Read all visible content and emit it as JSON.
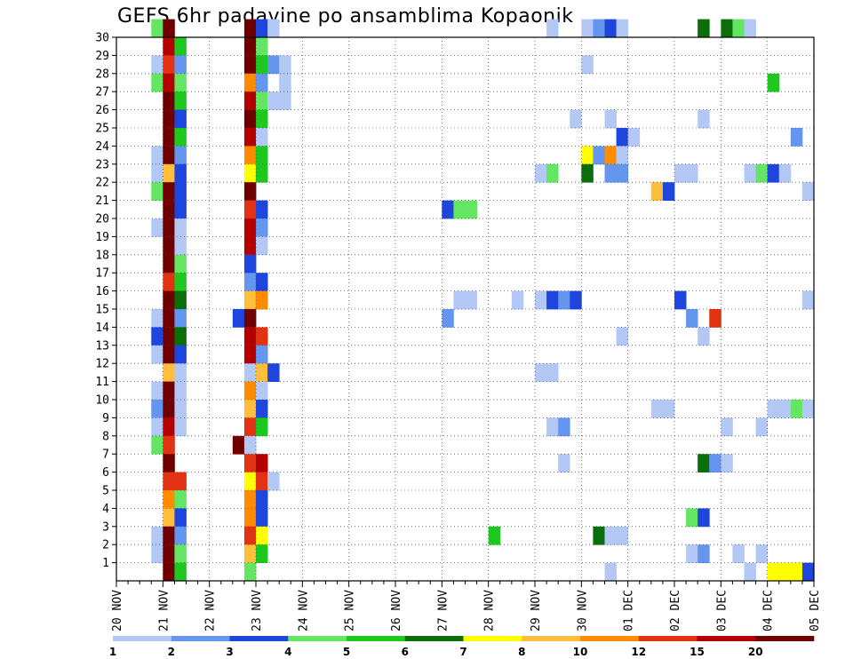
{
  "chart_data": {
    "type": "heatmap",
    "title": "GEFS 6hr padavine po ansamblima Kopaonik",
    "y_tick_labels": [
      "1",
      "2",
      "3",
      "4",
      "5",
      "6",
      "7",
      "8",
      "9",
      "10",
      "11",
      "12",
      "13",
      "14",
      "15",
      "16",
      "17",
      "18",
      "19",
      "20",
      "21",
      "22",
      "23",
      "24",
      "25",
      "26",
      "27",
      "28",
      "29",
      "30"
    ],
    "x_tick_labels": [
      "20 NOV",
      "21 NOV",
      "22 NOV",
      "23 NOV",
      "24 NOV",
      "25 NOV",
      "26 NOV",
      "27 NOV",
      "28 NOV",
      "29 NOV",
      "30 NOV",
      "01 DEC",
      "02 DEC",
      "03 DEC",
      "04 DEC",
      "05 DEC"
    ],
    "x_range_steps": [
      0,
      60
    ],
    "y_range": [
      0,
      30
    ],
    "grid": "dotted",
    "legend": {
      "placement": "bottom",
      "colors": [
        "#b4c8f5",
        "#6496f0",
        "#1e46dc",
        "#64e664",
        "#1ec81e",
        "#0a6e0a",
        "#ffff00",
        "#ffbe3c",
        "#ff8c00",
        "#e13214",
        "#b40000",
        "#6e0000"
      ],
      "labels": [
        "1",
        "2",
        "3",
        "4",
        "5",
        "6",
        "7",
        "8",
        "10",
        "12",
        "15",
        "20"
      ]
    },
    "cells": [
      [
        30,
        3,
        1,
        "#64e664"
      ],
      [
        30,
        4,
        1,
        "#6e0000"
      ],
      [
        30,
        11,
        1,
        "#6e0000"
      ],
      [
        30,
        12,
        1,
        "#1e46dc"
      ],
      [
        30,
        13,
        1,
        "#b4c8f5"
      ],
      [
        30,
        37,
        1,
        "#b4c8f5"
      ],
      [
        30,
        40,
        1,
        "#b4c8f5"
      ],
      [
        30,
        41,
        1,
        "#6496f0"
      ],
      [
        30,
        42,
        1,
        "#1e46dc"
      ],
      [
        30,
        43,
        1,
        "#b4c8f5"
      ],
      [
        30,
        50,
        1,
        "#0a6e0a"
      ],
      [
        30,
        52,
        1,
        "#0a6e0a"
      ],
      [
        30,
        53,
        1,
        "#64e664"
      ],
      [
        30,
        54,
        1,
        "#b4c8f5"
      ],
      [
        29,
        4,
        1,
        "#b40000"
      ],
      [
        29,
        5,
        1,
        "#1ec81e"
      ],
      [
        29,
        11,
        1,
        "#6e0000"
      ],
      [
        29,
        12,
        1,
        "#64e664"
      ],
      [
        28,
        3,
        1,
        "#b4c8f5"
      ],
      [
        28,
        4,
        1,
        "#e13214"
      ],
      [
        28,
        5,
        1,
        "#6496f0"
      ],
      [
        28,
        11,
        1,
        "#6e0000"
      ],
      [
        28,
        12,
        1,
        "#1ec81e"
      ],
      [
        28,
        13,
        1,
        "#6496f0"
      ],
      [
        28,
        14,
        1,
        "#b4c8f5"
      ],
      [
        28,
        40,
        1,
        "#b4c8f5"
      ],
      [
        27,
        3,
        1,
        "#64e664"
      ],
      [
        27,
        4,
        1,
        "#b40000"
      ],
      [
        27,
        5,
        1,
        "#64e664"
      ],
      [
        27,
        11,
        1,
        "#ff8c00"
      ],
      [
        27,
        12,
        1,
        "#6496f0"
      ],
      [
        27,
        14,
        1,
        "#b4c8f5"
      ],
      [
        27,
        56,
        1,
        "#1ec81e"
      ],
      [
        26,
        4,
        1,
        "#6e0000"
      ],
      [
        26,
        5,
        1,
        "#1ec81e"
      ],
      [
        26,
        11,
        1,
        "#b40000"
      ],
      [
        26,
        12,
        1,
        "#64e664"
      ],
      [
        26,
        13,
        1,
        "#b4c8f5"
      ],
      [
        26,
        14,
        1,
        "#b4c8f5"
      ],
      [
        25,
        4,
        1,
        "#6e0000"
      ],
      [
        25,
        5,
        1,
        "#1e46dc"
      ],
      [
        25,
        11,
        1,
        "#6e0000"
      ],
      [
        25,
        12,
        1,
        "#1ec81e"
      ],
      [
        25,
        39,
        1,
        "#b4c8f5"
      ],
      [
        25,
        42,
        1,
        "#b4c8f5"
      ],
      [
        25,
        50,
        1,
        "#b4c8f5"
      ],
      [
        24,
        4,
        1,
        "#6e0000"
      ],
      [
        24,
        5,
        1,
        "#1ec81e"
      ],
      [
        24,
        11,
        1,
        "#b40000"
      ],
      [
        24,
        12,
        1,
        "#b4c8f5"
      ],
      [
        24,
        43,
        1,
        "#1e46dc"
      ],
      [
        24,
        44,
        1,
        "#b4c8f5"
      ],
      [
        24,
        58,
        1,
        "#6496f0"
      ],
      [
        23,
        3,
        1,
        "#b4c8f5"
      ],
      [
        23,
        4,
        1,
        "#6e0000"
      ],
      [
        23,
        5,
        1,
        "#6496f0"
      ],
      [
        23,
        11,
        1,
        "#ff8c00"
      ],
      [
        23,
        12,
        1,
        "#1ec81e"
      ],
      [
        23,
        40,
        1,
        "#ffff00"
      ],
      [
        23,
        41,
        1,
        "#6496f0"
      ],
      [
        23,
        42,
        1,
        "#ff8c00"
      ],
      [
        23,
        43,
        1,
        "#b4c8f5"
      ],
      [
        22,
        3,
        1,
        "#b4c8f5"
      ],
      [
        22,
        4,
        1,
        "#ffbe3c"
      ],
      [
        22,
        5,
        1,
        "#1e46dc"
      ],
      [
        22,
        11,
        1,
        "#ffff00"
      ],
      [
        22,
        12,
        1,
        "#1ec81e"
      ],
      [
        22,
        36,
        1,
        "#b4c8f5"
      ],
      [
        22,
        37,
        1,
        "#64e664"
      ],
      [
        22,
        40,
        1,
        "#0a6e0a"
      ],
      [
        22,
        42,
        1,
        "#6496f0"
      ],
      [
        22,
        43,
        1,
        "#6496f0"
      ],
      [
        22,
        48,
        1,
        "#b4c8f5"
      ],
      [
        22,
        49,
        1,
        "#b4c8f5"
      ],
      [
        22,
        54,
        1,
        "#b4c8f5"
      ],
      [
        22,
        55,
        1,
        "#64e664"
      ],
      [
        22,
        56,
        1,
        "#1e46dc"
      ],
      [
        22,
        57,
        1,
        "#b4c8f5"
      ],
      [
        21,
        3,
        1,
        "#64e664"
      ],
      [
        21,
        4,
        1,
        "#6e0000"
      ],
      [
        21,
        5,
        1,
        "#1e46dc"
      ],
      [
        21,
        11,
        1,
        "#6e0000"
      ],
      [
        21,
        46,
        1,
        "#ffbe3c"
      ],
      [
        21,
        47,
        1,
        "#1e46dc"
      ],
      [
        21,
        59,
        1,
        "#b4c8f5"
      ],
      [
        20,
        4,
        1,
        "#6e0000"
      ],
      [
        20,
        5,
        1,
        "#1e46dc"
      ],
      [
        20,
        11,
        1,
        "#e13214"
      ],
      [
        20,
        12,
        1,
        "#1e46dc"
      ],
      [
        20,
        28,
        1,
        "#1e46dc"
      ],
      [
        20,
        29,
        1,
        "#64e664"
      ],
      [
        20,
        30,
        1,
        "#64e664"
      ],
      [
        19,
        3,
        1,
        "#b4c8f5"
      ],
      [
        19,
        4,
        1,
        "#6e0000"
      ],
      [
        19,
        5,
        1,
        "#b4c8f5"
      ],
      [
        19,
        11,
        1,
        "#b40000"
      ],
      [
        19,
        12,
        1,
        "#6496f0"
      ],
      [
        18,
        4,
        1,
        "#6e0000"
      ],
      [
        18,
        5,
        1,
        "#b4c8f5"
      ],
      [
        18,
        11,
        1,
        "#b40000"
      ],
      [
        18,
        12,
        1,
        "#b4c8f5"
      ],
      [
        17,
        4,
        1,
        "#6e0000"
      ],
      [
        17,
        5,
        1,
        "#64e664"
      ],
      [
        17,
        11,
        1,
        "#1e46dc"
      ],
      [
        16,
        4,
        1,
        "#e13214"
      ],
      [
        16,
        5,
        1,
        "#1ec81e"
      ],
      [
        16,
        11,
        1,
        "#6496f0"
      ],
      [
        16,
        12,
        1,
        "#1e46dc"
      ],
      [
        15,
        4,
        1,
        "#6e0000"
      ],
      [
        15,
        5,
        1,
        "#0a6e0a"
      ],
      [
        15,
        11,
        1,
        "#ffbe3c"
      ],
      [
        15,
        12,
        1,
        "#ff8c00"
      ],
      [
        15,
        29,
        1,
        "#b4c8f5"
      ],
      [
        15,
        30,
        1,
        "#b4c8f5"
      ],
      [
        15,
        34,
        1,
        "#b4c8f5"
      ],
      [
        15,
        36,
        1,
        "#b4c8f5"
      ],
      [
        15,
        37,
        1,
        "#1e46dc"
      ],
      [
        15,
        38,
        1,
        "#6496f0"
      ],
      [
        15,
        39,
        1,
        "#1e46dc"
      ],
      [
        15,
        48,
        1,
        "#1e46dc"
      ],
      [
        15,
        59,
        1,
        "#b4c8f5"
      ],
      [
        14,
        3,
        1,
        "#b4c8f5"
      ],
      [
        14,
        4,
        1,
        "#6e0000"
      ],
      [
        14,
        5,
        1,
        "#6496f0"
      ],
      [
        14,
        10,
        1,
        "#1e46dc"
      ],
      [
        14,
        11,
        1,
        "#6e0000"
      ],
      [
        14,
        28,
        1,
        "#6496f0"
      ],
      [
        14,
        49,
        1,
        "#6496f0"
      ],
      [
        14,
        51,
        1,
        "#e13214"
      ],
      [
        13,
        3,
        1,
        "#1e46dc"
      ],
      [
        13,
        4,
        1,
        "#6e0000"
      ],
      [
        13,
        5,
        1,
        "#0a6e0a"
      ],
      [
        13,
        11,
        1,
        "#b40000"
      ],
      [
        13,
        12,
        1,
        "#e13214"
      ],
      [
        13,
        43,
        1,
        "#b4c8f5"
      ],
      [
        13,
        50,
        1,
        "#b4c8f5"
      ],
      [
        12,
        3,
        1,
        "#b4c8f5"
      ],
      [
        12,
        4,
        1,
        "#6e0000"
      ],
      [
        12,
        5,
        1,
        "#1e46dc"
      ],
      [
        12,
        11,
        1,
        "#b40000"
      ],
      [
        12,
        12,
        1,
        "#6496f0"
      ],
      [
        11,
        4,
        1,
        "#ffbe3c"
      ],
      [
        11,
        5,
        1,
        "#b4c8f5"
      ],
      [
        11,
        11,
        1,
        "#b4c8f5"
      ],
      [
        11,
        12,
        1,
        "#ffbe3c"
      ],
      [
        11,
        13,
        1,
        "#1e46dc"
      ],
      [
        11,
        36,
        1,
        "#b4c8f5"
      ],
      [
        11,
        37,
        1,
        "#b4c8f5"
      ],
      [
        10,
        3,
        1,
        "#b4c8f5"
      ],
      [
        10,
        4,
        1,
        "#6e0000"
      ],
      [
        10,
        5,
        1,
        "#b4c8f5"
      ],
      [
        10,
        11,
        1,
        "#ff8c00"
      ],
      [
        10,
        12,
        1,
        "#b4c8f5"
      ],
      [
        9,
        3,
        1,
        "#6496f0"
      ],
      [
        9,
        4,
        1,
        "#6e0000"
      ],
      [
        9,
        5,
        1,
        "#b4c8f5"
      ],
      [
        9,
        11,
        1,
        "#ffbe3c"
      ],
      [
        9,
        12,
        1,
        "#1e46dc"
      ],
      [
        9,
        46,
        1,
        "#b4c8f5"
      ],
      [
        9,
        47,
        1,
        "#b4c8f5"
      ],
      [
        9,
        56,
        1,
        "#b4c8f5"
      ],
      [
        9,
        57,
        1,
        "#b4c8f5"
      ],
      [
        9,
        58,
        1,
        "#64e664"
      ],
      [
        9,
        59,
        1,
        "#b4c8f5"
      ],
      [
        8,
        3,
        1,
        "#b4c8f5"
      ],
      [
        8,
        4,
        1,
        "#b40000"
      ],
      [
        8,
        5,
        1,
        "#b4c8f5"
      ],
      [
        8,
        11,
        1,
        "#e13214"
      ],
      [
        8,
        12,
        1,
        "#1ec81e"
      ],
      [
        8,
        37,
        1,
        "#b4c8f5"
      ],
      [
        8,
        38,
        1,
        "#6496f0"
      ],
      [
        8,
        52,
        1,
        "#b4c8f5"
      ],
      [
        8,
        55,
        1,
        "#b4c8f5"
      ],
      [
        7,
        3,
        1,
        "#64e664"
      ],
      [
        7,
        4,
        1,
        "#e13214"
      ],
      [
        7,
        10,
        1,
        "#6e0000"
      ],
      [
        7,
        11,
        1,
        "#b4c8f5"
      ],
      [
        6,
        4,
        1,
        "#6e0000"
      ],
      [
        6,
        11,
        1,
        "#e13214"
      ],
      [
        6,
        12,
        1,
        "#b40000"
      ],
      [
        6,
        38,
        1,
        "#b4c8f5"
      ],
      [
        6,
        50,
        1,
        "#0a6e0a"
      ],
      [
        6,
        51,
        1,
        "#6496f0"
      ],
      [
        6,
        52,
        1,
        "#b4c8f5"
      ],
      [
        5,
        4,
        1,
        "#e13214"
      ],
      [
        5,
        5,
        1,
        "#e13214"
      ],
      [
        5,
        11,
        1,
        "#ffff00"
      ],
      [
        5,
        12,
        1,
        "#e13214"
      ],
      [
        5,
        13,
        1,
        "#b4c8f5"
      ],
      [
        4,
        4,
        1,
        "#ff8c00"
      ],
      [
        4,
        5,
        1,
        "#64e664"
      ],
      [
        4,
        11,
        1,
        "#ff8c00"
      ],
      [
        4,
        12,
        1,
        "#1e46dc"
      ],
      [
        3,
        4,
        1,
        "#ffbe3c"
      ],
      [
        3,
        5,
        1,
        "#1e46dc"
      ],
      [
        3,
        11,
        1,
        "#ff8c00"
      ],
      [
        3,
        12,
        1,
        "#1e46dc"
      ],
      [
        3,
        49,
        1,
        "#64e664"
      ],
      [
        3,
        50,
        1,
        "#1e46dc"
      ],
      [
        2,
        3,
        1,
        "#b4c8f5"
      ],
      [
        2,
        4,
        1,
        "#6e0000"
      ],
      [
        2,
        5,
        1,
        "#6496f0"
      ],
      [
        2,
        11,
        1,
        "#e13214"
      ],
      [
        2,
        12,
        1,
        "#ffff00"
      ],
      [
        2,
        32,
        1,
        "#1ec81e"
      ],
      [
        2,
        41,
        1,
        "#0a6e0a"
      ],
      [
        2,
        42,
        1,
        "#b4c8f5"
      ],
      [
        2,
        43,
        1,
        "#b4c8f5"
      ],
      [
        1,
        3,
        1,
        "#b4c8f5"
      ],
      [
        1,
        4,
        1,
        "#6e0000"
      ],
      [
        1,
        5,
        1,
        "#64e664"
      ],
      [
        1,
        11,
        1,
        "#ffbe3c"
      ],
      [
        1,
        12,
        1,
        "#1ec81e"
      ],
      [
        1,
        49,
        1,
        "#b4c8f5"
      ],
      [
        1,
        50,
        1,
        "#6496f0"
      ],
      [
        1,
        53,
        1,
        "#b4c8f5"
      ],
      [
        1,
        55,
        1,
        "#b4c8f5"
      ],
      [
        0,
        4,
        1,
        "#6e0000"
      ],
      [
        0,
        5,
        1,
        "#1ec81e"
      ],
      [
        0,
        11,
        1,
        "#64e664"
      ],
      [
        0,
        42,
        1,
        "#b4c8f5"
      ],
      [
        0,
        54,
        1,
        "#b4c8f5"
      ],
      [
        0,
        56,
        1,
        "#ffff00"
      ],
      [
        0,
        57,
        1,
        "#ffff00"
      ],
      [
        0,
        58,
        1,
        "#ffff00"
      ],
      [
        0,
        59,
        1,
        "#1e46dc"
      ]
    ]
  }
}
